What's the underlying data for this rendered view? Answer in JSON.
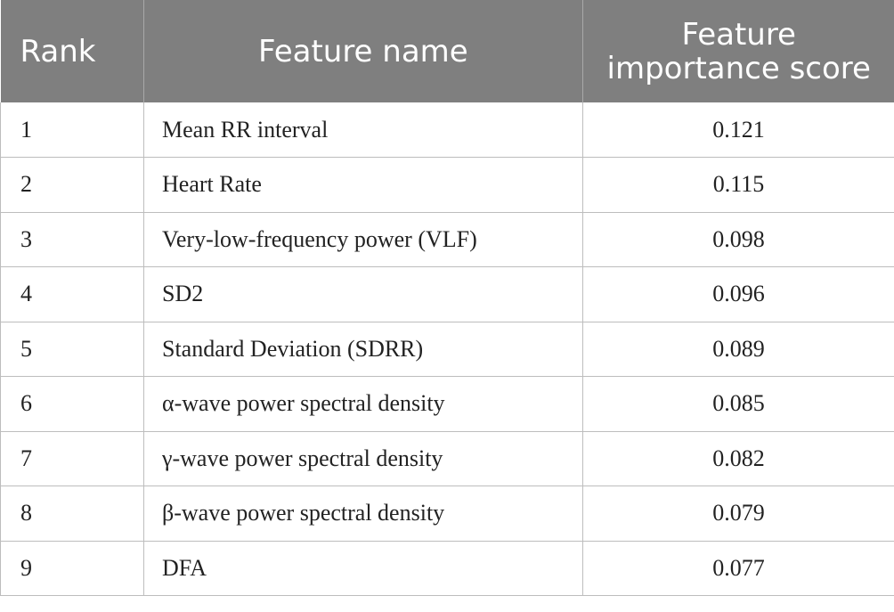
{
  "table": {
    "headers": {
      "rank": "Rank",
      "feature_name": "Feature name",
      "score_line1": "Feature",
      "score_line2": "importance score"
    },
    "rows": [
      {
        "rank": "1",
        "feature": "Mean RR interval",
        "score": "0.121"
      },
      {
        "rank": "2",
        "feature": "Heart Rate",
        "score": "0.115"
      },
      {
        "rank": "3",
        "feature": "Very-low-frequency power (VLF)",
        "score": "0.098"
      },
      {
        "rank": "4",
        "feature": "SD2",
        "score": "0.096"
      },
      {
        "rank": "5",
        "feature": "Standard Deviation (SDRR)",
        "score": "0.089"
      },
      {
        "rank": "6",
        "feature": "α-wave power spectral density",
        "score": "0.085"
      },
      {
        "rank": "7",
        "feature": "γ-wave power spectral density",
        "score": "0.082"
      },
      {
        "rank": "8",
        "feature": "β-wave power spectral density",
        "score": "0.079"
      },
      {
        "rank": "9",
        "feature": "DFA",
        "score": "0.077"
      }
    ]
  }
}
